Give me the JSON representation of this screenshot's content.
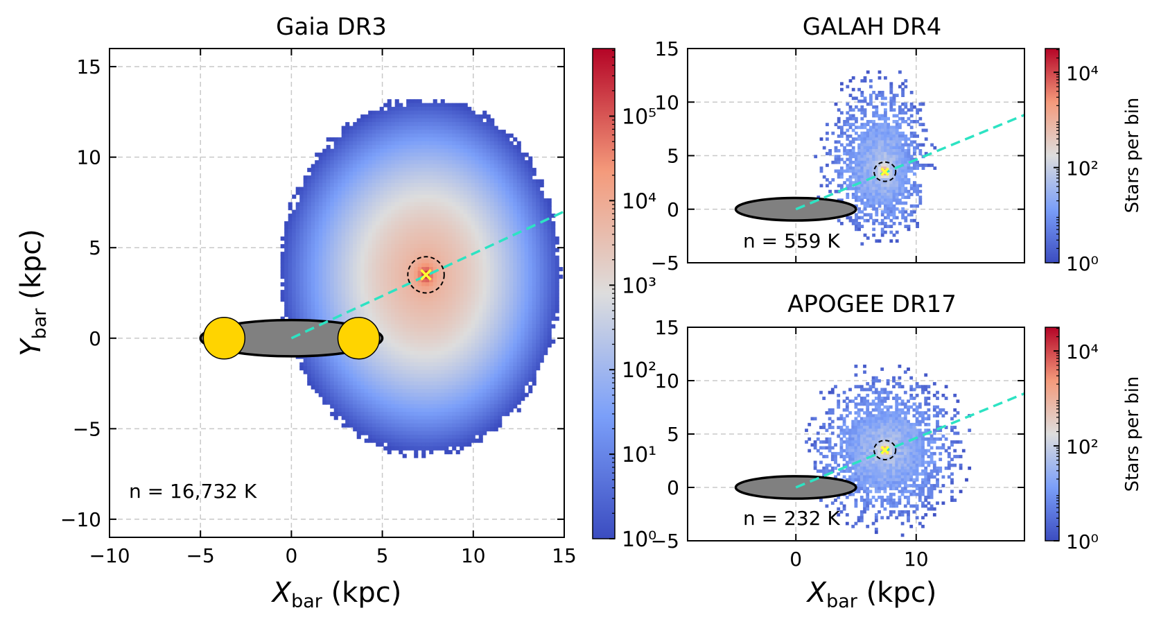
{
  "chart_data": [
    {
      "id": "gaia",
      "type": "heatmap",
      "title": "Gaia DR3",
      "xlabel_var": "X",
      "xlabel_sub": "bar",
      "xlabel_unit": " (kpc)",
      "ylabel_var": "Y",
      "ylabel_sub": "bar",
      "ylabel_unit": " (kpc)",
      "xlim": [
        -10,
        15
      ],
      "ylim": [
        -11,
        16
      ],
      "xticks": [
        -10,
        -5,
        0,
        5,
        10,
        15
      ],
      "xtick_labels": [
        "−10",
        "−5",
        "0",
        "5",
        "10",
        "15"
      ],
      "yticks": [
        -10,
        -5,
        0,
        5,
        10,
        15
      ],
      "ytick_labels": [
        "−10",
        "−5",
        "0",
        "5",
        "10",
        "15"
      ],
      "grid": true,
      "annotation": "n = 16,732 K",
      "density": {
        "peak": [
          7.4,
          3.5
        ],
        "extent_x": [
          -0.6,
          14.8
        ],
        "extent_y": [
          -6.4,
          13.2
        ],
        "max_log10": 5.8
      },
      "sun_position": [
        7.4,
        3.5
      ],
      "sun_circle_radius": 1.0,
      "bar_line": {
        "from": [
          0,
          0
        ],
        "to": [
          15,
          7.0
        ],
        "color": "#2de3c3"
      },
      "bar_ellipse": {
        "center": [
          0,
          0
        ],
        "semi_x": 5.0,
        "semi_y": 1.0
      },
      "bar_end_disks": [
        [
          -3.7,
          0
        ],
        [
          3.7,
          0
        ]
      ],
      "colorbar": {
        "label": "",
        "ticks_log10": [
          0,
          1,
          2,
          3,
          4,
          5
        ],
        "tick_labels": [
          "10⁰",
          "10¹",
          "10²",
          "10³",
          "10⁴",
          "10⁵"
        ],
        "range_log10": [
          0,
          5.8
        ]
      }
    },
    {
      "id": "galah",
      "type": "heatmap",
      "title": "GALAH DR4",
      "xlim": [
        -9,
        19
      ],
      "ylim": [
        -5,
        15
      ],
      "xticks": [
        0,
        10
      ],
      "xtick_labels": [
        "0",
        "10"
      ],
      "yticks": [
        -5,
        0,
        5,
        10,
        15
      ],
      "ytick_labels": [
        "−5",
        "0",
        "5",
        "10",
        "15"
      ],
      "grid": true,
      "annotation": "n = 559 K",
      "density": {
        "peak": [
          7.4,
          3.5
        ],
        "extent_x": [
          1.5,
          11.5
        ],
        "extent_y": [
          -3.5,
          13.5
        ],
        "max_log10": 4.5
      },
      "sun_position": [
        7.4,
        3.5
      ],
      "sun_circle_radius": 0.9,
      "bar_line": {
        "from": [
          0,
          0
        ],
        "to": [
          19,
          8.8
        ],
        "color": "#2de3c3"
      },
      "bar_ellipse": {
        "center": [
          0,
          0
        ],
        "semi_x": 5.0,
        "semi_y": 1.0
      },
      "colorbar": {
        "label": "Stars per bin",
        "ticks_log10": [
          0,
          2,
          4
        ],
        "tick_labels": [
          "10⁰",
          "10²",
          "10⁴"
        ],
        "range_log10": [
          0,
          4.5
        ]
      }
    },
    {
      "id": "apogee",
      "type": "heatmap",
      "title": "APOGEE DR17",
      "xlabel_var": "X",
      "xlabel_sub": "bar",
      "xlabel_unit": " (kpc)",
      "xlim": [
        -9,
        19
      ],
      "ylim": [
        -5,
        15
      ],
      "xticks": [
        0,
        10
      ],
      "xtick_labels": [
        "0",
        "10"
      ],
      "yticks": [
        -5,
        0,
        5,
        10,
        15
      ],
      "ytick_labels": [
        "−5",
        "0",
        "5",
        "10",
        "15"
      ],
      "grid": true,
      "annotation": "n = 232 K",
      "density": {
        "peak": [
          7.4,
          3.5
        ],
        "extent_x": [
          0.5,
          14.5
        ],
        "extent_y": [
          -4.5,
          11.5
        ],
        "max_log10": 4.5
      },
      "sun_position": [
        7.4,
        3.5
      ],
      "sun_circle_radius": 0.9,
      "bar_line": {
        "from": [
          0,
          0
        ],
        "to": [
          19,
          8.8
        ],
        "color": "#2de3c3"
      },
      "bar_ellipse": {
        "center": [
          0,
          0
        ],
        "semi_x": 5.0,
        "semi_y": 1.0
      },
      "colorbar": {
        "label": "Stars per bin",
        "ticks_log10": [
          0,
          2,
          4
        ],
        "tick_labels": [
          "10⁰",
          "10²",
          "10⁴"
        ],
        "range_log10": [
          0,
          4.5
        ]
      }
    }
  ],
  "colors": {
    "sun_marker": "#ffff33",
    "bar_disk_fill": "#ffd400",
    "bar_ellipse_fill": "#808080",
    "grid": "#c8c8c8"
  }
}
